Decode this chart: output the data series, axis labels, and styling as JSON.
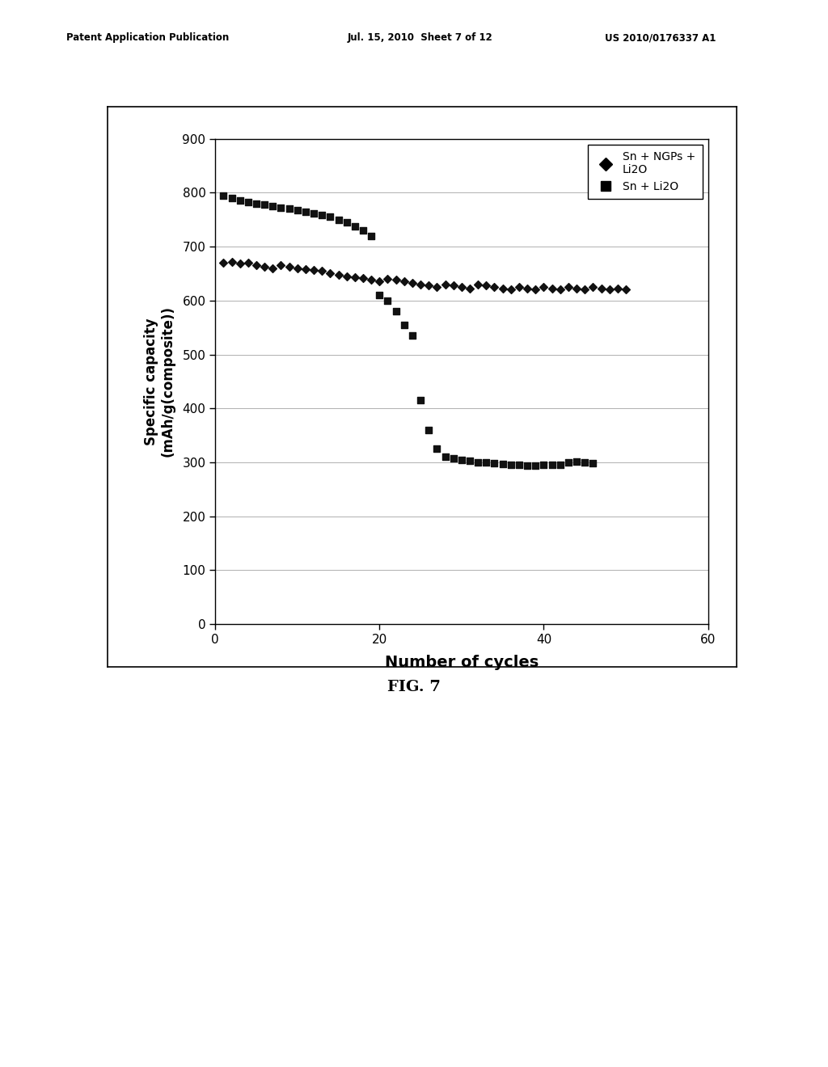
{
  "title_header": "Patent Application Publication",
  "title_date": "Jul. 15, 2010  Sheet 7 of 12",
  "title_patent": "US 2010/0176337 A1",
  "fig_label": "FIG. 7",
  "xlabel": "Number of cycles",
  "ylabel": "Specific capacity\n(mAh/g(composite))",
  "xlim": [
    0,
    60
  ],
  "ylim": [
    0,
    900
  ],
  "xticks": [
    0,
    20,
    40,
    60
  ],
  "yticks": [
    0,
    100,
    200,
    300,
    400,
    500,
    600,
    700,
    800,
    900
  ],
  "legend1_label": "Sn + NGPs +\nLi2O",
  "legend2_label": "Sn + Li2O",
  "ngp_x": [
    1,
    2,
    3,
    4,
    5,
    6,
    7,
    8,
    9,
    10,
    11,
    12,
    13,
    14,
    15,
    16,
    17,
    18,
    19,
    20,
    21,
    22,
    23,
    24,
    25,
    26,
    27,
    28,
    29,
    30,
    31,
    32,
    33,
    34,
    35,
    36,
    37,
    38,
    39,
    40,
    41,
    42,
    43,
    44,
    45,
    46,
    47,
    48,
    49,
    50
  ],
  "ngp_y": [
    670,
    672,
    668,
    670,
    665,
    663,
    660,
    665,
    662,
    660,
    658,
    656,
    655,
    650,
    648,
    645,
    643,
    641,
    638,
    635,
    640,
    638,
    635,
    632,
    630,
    628,
    625,
    630,
    628,
    625,
    622,
    630,
    628,
    625,
    622,
    620,
    625,
    622,
    620,
    625,
    622,
    620,
    625,
    622,
    620,
    625,
    622,
    620,
    622,
    620
  ],
  "sn_x": [
    1,
    2,
    3,
    4,
    5,
    6,
    7,
    8,
    9,
    10,
    11,
    12,
    13,
    14,
    15,
    16,
    17,
    18,
    19,
    20,
    21,
    22,
    23,
    24,
    25,
    26,
    27,
    28,
    29,
    30,
    31,
    32,
    33,
    34,
    35,
    36,
    37,
    38,
    39,
    40,
    41,
    42,
    43,
    44,
    45,
    46
  ],
  "sn_y": [
    795,
    790,
    785,
    783,
    780,
    778,
    775,
    772,
    770,
    768,
    765,
    762,
    758,
    755,
    750,
    745,
    738,
    730,
    720,
    610,
    600,
    580,
    555,
    535,
    415,
    360,
    325,
    310,
    308,
    305,
    303,
    300,
    300,
    298,
    297,
    295,
    295,
    294,
    294,
    295,
    295,
    296,
    300,
    302,
    300,
    298
  ],
  "background_color": "#ffffff",
  "plot_bg_color": "#ffffff",
  "grid_color": "#b0b0b0",
  "data_color": "#111111",
  "marker_diamond_size": 5,
  "marker_square_size": 6
}
